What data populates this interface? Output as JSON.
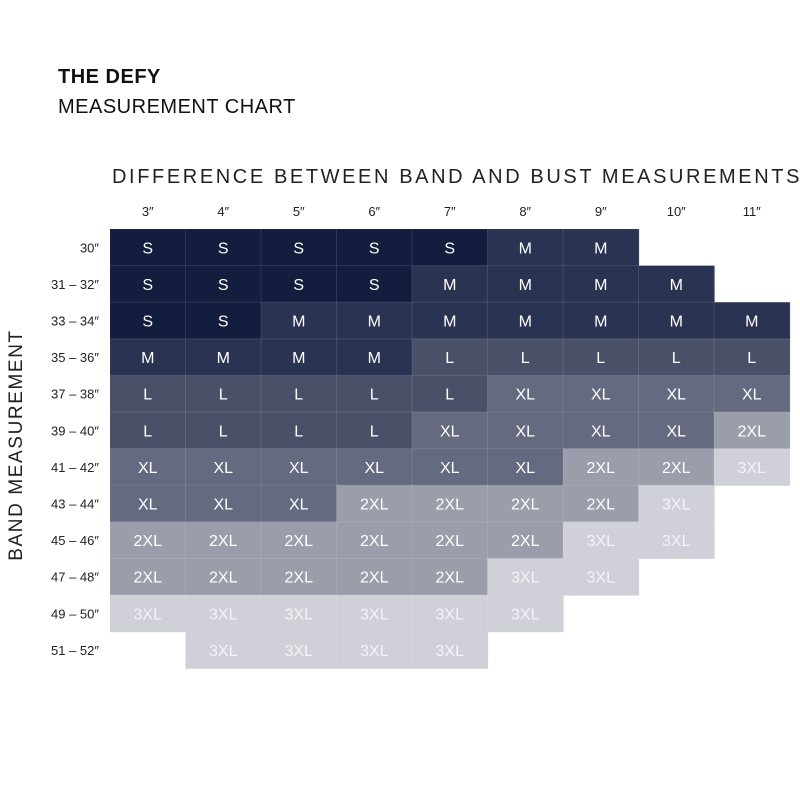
{
  "header": {
    "title": "THE DEFY",
    "subtitle": "MEASUREMENT CHART"
  },
  "chart_data": {
    "type": "table",
    "xlabel": "DIFFERENCE BETWEEN BAND AND BUST MEASUREMENTS",
    "ylabel": "BAND MEASUREMENT",
    "columns": [
      "3″",
      "4″",
      "5″",
      "6″",
      "7″",
      "8″",
      "9″",
      "10″",
      "11″"
    ],
    "rows": [
      "30″",
      "31 – 32″",
      "33 – 34″",
      "35 – 36″",
      "37 – 38″",
      "39 – 40″",
      "41 – 42″",
      "43 – 44″",
      "45 – 46″",
      "47 – 48″",
      "49 – 50″",
      "51 – 52″"
    ],
    "cells": [
      [
        "S",
        "S",
        "S",
        "S",
        "S",
        "M",
        "M",
        "",
        ""
      ],
      [
        "S",
        "S",
        "S",
        "S",
        "M",
        "M",
        "M",
        "M",
        ""
      ],
      [
        "S",
        "S",
        "M",
        "M",
        "M",
        "M",
        "M",
        "M",
        "M"
      ],
      [
        "M",
        "M",
        "M",
        "M",
        "L",
        "L",
        "L",
        "L",
        "L"
      ],
      [
        "L",
        "L",
        "L",
        "L",
        "L",
        "XL",
        "XL",
        "XL",
        "XL"
      ],
      [
        "L",
        "L",
        "L",
        "L",
        "XL",
        "XL",
        "XL",
        "XL",
        "2XL"
      ],
      [
        "XL",
        "XL",
        "XL",
        "XL",
        "XL",
        "XL",
        "2XL",
        "2XL",
        "3XL"
      ],
      [
        "XL",
        "XL",
        "XL",
        "2XL",
        "2XL",
        "2XL",
        "2XL",
        "3XL",
        ""
      ],
      [
        "2XL",
        "2XL",
        "2XL",
        "2XL",
        "2XL",
        "2XL",
        "3XL",
        "3XL",
        ""
      ],
      [
        "2XL",
        "2XL",
        "2XL",
        "2XL",
        "2XL",
        "3XL",
        "3XL",
        "",
        ""
      ],
      [
        "3XL",
        "3XL",
        "3XL",
        "3XL",
        "3XL",
        "3XL",
        "",
        "",
        ""
      ],
      [
        "",
        "3XL",
        "3XL",
        "3XL",
        "3XL",
        "",
        "",
        "",
        ""
      ]
    ],
    "size_colors": {
      "S": "#131d3d",
      "M": "#2a3352",
      "L": "#4a5068",
      "XL": "#646a7f",
      "2XL": "#9a9eab",
      "3XL": "#cfd0d8"
    },
    "text_colors": {
      "S": "#ffffff",
      "M": "#ffffff",
      "L": "#ffffff",
      "XL": "#ffffff",
      "2XL": "#ffffff",
      "3XL": "#f4f4f7"
    }
  }
}
